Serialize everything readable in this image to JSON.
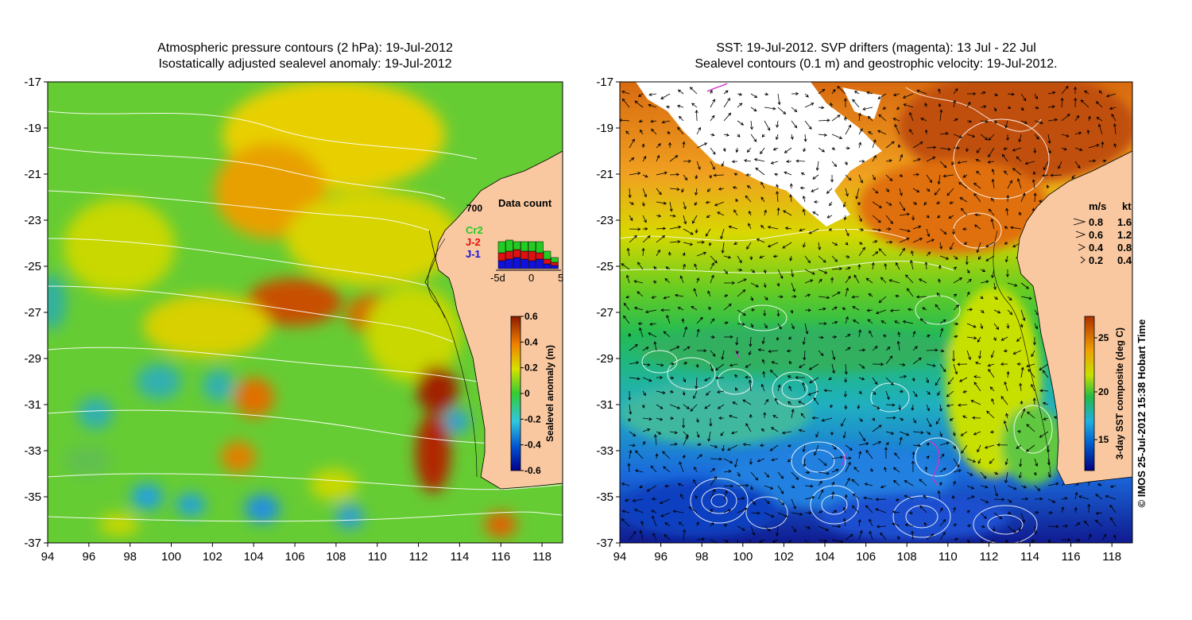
{
  "left_panel": {
    "title_line1": "Atmospheric pressure contours (2 hPa): 19-Jul-2012",
    "title_line2": "Isostatically adjusted sealevel anomaly: 19-Jul-2012",
    "x_ticks": [
      "94",
      "96",
      "98",
      "100",
      "102",
      "104",
      "106",
      "108",
      "110",
      "112",
      "114",
      "116",
      "118"
    ],
    "y_ticks": [
      "-17",
      "-19",
      "-21",
      "-23",
      "-25",
      "-27",
      "-29",
      "-31",
      "-33",
      "-35",
      "-37"
    ],
    "colorbar": {
      "label": "Sealevel anomaly (m)",
      "ticks": [
        "0.6",
        "0.4",
        "0.2",
        "0",
        "-0.2",
        "-0.4",
        "-0.6"
      ]
    },
    "inset": {
      "title": "Data count",
      "max_label": "700",
      "missions": [
        "Cr2",
        "J-2",
        "J-1"
      ],
      "mission_colors": [
        "#22cc22",
        "#dd1111",
        "#1111dd"
      ],
      "x_labels": [
        "-5d",
        "0",
        "5"
      ]
    }
  },
  "right_panel": {
    "title_line1": "SST: 19-Jul-2012. SVP drifters (magenta): 13 Jul - 22 Jul",
    "title_line2": "Sealevel contours (0.1 m) and geostrophic velocity: 19-Jul-2012.",
    "x_ticks": [
      "94",
      "96",
      "98",
      "100",
      "102",
      "104",
      "106",
      "108",
      "110",
      "112",
      "114",
      "116",
      "118"
    ],
    "y_ticks": [
      "-17",
      "-19",
      "-21",
      "-23",
      "-25",
      "-27",
      "-29",
      "-31",
      "-33",
      "-35",
      "-37"
    ],
    "velocity_legend": {
      "header_ms": "m/s",
      "header_kt": "kt",
      "rows": [
        {
          "ms": "0.8",
          "kt": "1.6"
        },
        {
          "ms": "0.6",
          "kt": "1.2"
        },
        {
          "ms": "0.4",
          "kt": "0.8"
        },
        {
          "ms": "0.2",
          "kt": "0.4"
        }
      ]
    },
    "colorbar": {
      "label": "3-day SST composite (deg C)",
      "ticks": [
        "25",
        "20",
        "15"
      ]
    }
  },
  "credit": "© IMOS 25-Jul-2012 15:38 Hobart Time",
  "colors": {
    "land": "#f9c8a0",
    "cloud": "#ffffff",
    "drifters": "#cc33cc"
  }
}
